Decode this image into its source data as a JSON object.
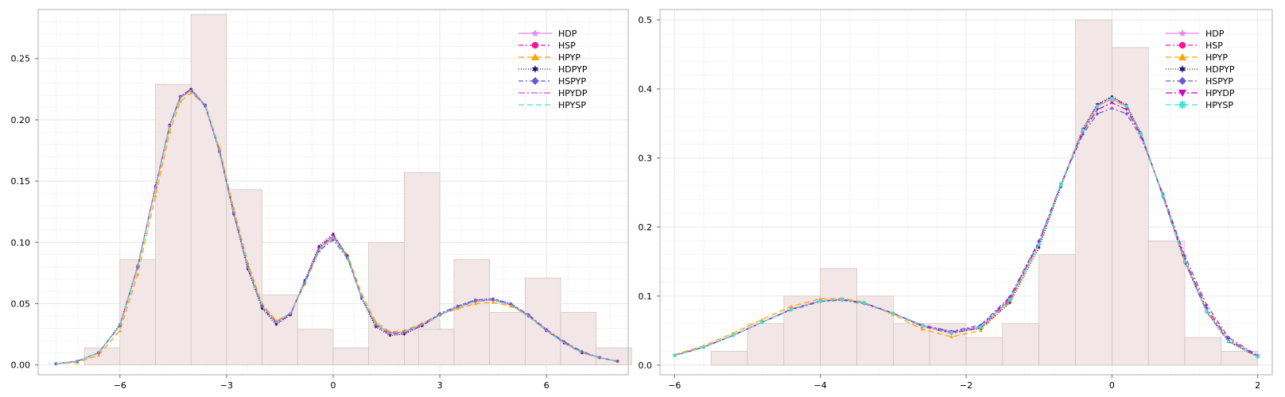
{
  "chart_data": [
    {
      "type": "line",
      "title": "",
      "xlabel": "",
      "ylabel": "",
      "xlim": [
        -8.3,
        8.3
      ],
      "ylim": [
        -0.008,
        0.29
      ],
      "xticks": [
        -6,
        -3,
        0,
        3,
        6
      ],
      "xtick_labels": [
        "−6",
        "−3",
        "0",
        "3",
        "6"
      ],
      "yticks": [
        0,
        0.05,
        0.1,
        0.15,
        0.2,
        0.25
      ],
      "ytick_labels": [
        "0.00",
        "0.05",
        "0.10",
        "0.15",
        "0.20",
        "0.25"
      ],
      "grid": true,
      "legend_position": "top-right",
      "histogram": {
        "color": "#f2e6e6",
        "bins": [
          {
            "x0": -7.0,
            "x1": -6.0,
            "height": 0.014
          },
          {
            "x0": -6.0,
            "x1": -5.0,
            "height": 0.086
          },
          {
            "x0": -5.0,
            "x1": -4.0,
            "height": 0.229
          },
          {
            "x0": -4.0,
            "x1": -3.0,
            "height": 0.286
          },
          {
            "x0": -3.0,
            "x1": -2.0,
            "height": 0.143
          },
          {
            "x0": -2.0,
            "x1": -1.0,
            "height": 0.057
          },
          {
            "x0": -1.0,
            "x1": 0.0,
            "height": 0.029
          },
          {
            "x0": 0.0,
            "x1": 1.0,
            "height": 0.014
          },
          {
            "x0": 1.0,
            "x1": 2.0,
            "height": 0.1
          },
          {
            "x0": 2.0,
            "x1": 3.0,
            "height": 0.157
          },
          {
            "x0": 3.0,
            "x1": 4.0,
            "height": 0.029
          }
        ],
        "bins2": [
          {
            "x0": 2.4,
            "x1": 3.4,
            "height": 0.029
          },
          {
            "x0": 3.4,
            "x1": 4.4,
            "height": 0.086
          },
          {
            "x0": 4.4,
            "x1": 5.4,
            "height": 0.043
          },
          {
            "x0": 5.4,
            "x1": 6.4,
            "height": 0.071
          },
          {
            "x0": 6.4,
            "x1": 7.4,
            "height": 0.043
          },
          {
            "x0": 7.4,
            "x1": 8.4,
            "height": 0.014
          }
        ]
      },
      "x": [
        -7.8,
        -7.2,
        -6.6,
        -6.0,
        -5.5,
        -5.0,
        -4.6,
        -4.3,
        -4.0,
        -3.6,
        -3.2,
        -2.8,
        -2.4,
        -2.0,
        -1.6,
        -1.2,
        -0.8,
        -0.4,
        0.0,
        0.4,
        0.8,
        1.2,
        1.6,
        2.0,
        2.5,
        3.0,
        3.5,
        4.0,
        4.5,
        5.0,
        5.5,
        6.0,
        6.5,
        7.0,
        7.5,
        8.0
      ],
      "series": [
        {
          "name": "HDP",
          "color": "#ee82ee",
          "dash": "",
          "marker": "star",
          "values": [
            0.001,
            0.003,
            0.01,
            0.032,
            0.08,
            0.145,
            0.195,
            0.218,
            0.224,
            0.212,
            0.175,
            0.125,
            0.08,
            0.048,
            0.035,
            0.042,
            0.068,
            0.095,
            0.105,
            0.088,
            0.055,
            0.033,
            0.026,
            0.027,
            0.033,
            0.041,
            0.047,
            0.052,
            0.053,
            0.049,
            0.04,
            0.028,
            0.018,
            0.01,
            0.006,
            0.003
          ]
        },
        {
          "name": "HSP",
          "color": "#ff1493",
          "dash": "6,3,2,3",
          "marker": "circle",
          "values": [
            0.001,
            0.003,
            0.01,
            0.032,
            0.08,
            0.145,
            0.195,
            0.219,
            0.225,
            0.212,
            0.175,
            0.124,
            0.079,
            0.047,
            0.034,
            0.041,
            0.068,
            0.096,
            0.106,
            0.089,
            0.055,
            0.032,
            0.025,
            0.026,
            0.032,
            0.041,
            0.047,
            0.052,
            0.053,
            0.049,
            0.04,
            0.028,
            0.018,
            0.01,
            0.006,
            0.003
          ]
        },
        {
          "name": "HPYP",
          "color": "#ffa500",
          "dash": "7,4",
          "marker": "triangle",
          "values": [
            0.001,
            0.002,
            0.008,
            0.028,
            0.074,
            0.138,
            0.19,
            0.215,
            0.222,
            0.212,
            0.177,
            0.128,
            0.083,
            0.05,
            0.036,
            0.042,
            0.066,
            0.093,
            0.104,
            0.09,
            0.058,
            0.035,
            0.027,
            0.028,
            0.034,
            0.041,
            0.046,
            0.05,
            0.051,
            0.048,
            0.04,
            0.029,
            0.019,
            0.011,
            0.006,
            0.003
          ]
        },
        {
          "name": "HDPYP",
          "color": "#191970",
          "dash": "1,2",
          "marker": "star6",
          "values": [
            0.001,
            0.003,
            0.01,
            0.033,
            0.081,
            0.146,
            0.196,
            0.219,
            0.225,
            0.212,
            0.174,
            0.123,
            0.078,
            0.046,
            0.033,
            0.041,
            0.069,
            0.097,
            0.107,
            0.089,
            0.054,
            0.031,
            0.024,
            0.025,
            0.032,
            0.041,
            0.048,
            0.053,
            0.054,
            0.05,
            0.04,
            0.028,
            0.018,
            0.01,
            0.006,
            0.003
          ]
        },
        {
          "name": "HSPYP",
          "color": "#6a5acd",
          "dash": "6,3,2,3",
          "marker": "diamond",
          "values": [
            0.001,
            0.003,
            0.01,
            0.032,
            0.08,
            0.145,
            0.195,
            0.219,
            0.224,
            0.211,
            0.174,
            0.124,
            0.08,
            0.048,
            0.035,
            0.042,
            0.067,
            0.093,
            0.102,
            0.087,
            0.055,
            0.033,
            0.026,
            0.027,
            0.033,
            0.042,
            0.048,
            0.053,
            0.054,
            0.05,
            0.041,
            0.029,
            0.019,
            0.011,
            0.006,
            0.003
          ]
        },
        {
          "name": "HPYDP",
          "color": "#dd44dd",
          "dash": "8,3,2,3",
          "marker": "none",
          "values": [
            0.001,
            0.003,
            0.01,
            0.032,
            0.08,
            0.145,
            0.195,
            0.218,
            0.224,
            0.212,
            0.175,
            0.125,
            0.08,
            0.048,
            0.035,
            0.042,
            0.068,
            0.095,
            0.105,
            0.088,
            0.055,
            0.033,
            0.026,
            0.027,
            0.033,
            0.041,
            0.047,
            0.052,
            0.053,
            0.049,
            0.04,
            0.028,
            0.018,
            0.01,
            0.006,
            0.003
          ]
        },
        {
          "name": "HPYSP",
          "color": "#40e0d0",
          "dash": "7,4",
          "marker": "none",
          "values": [
            0.001,
            0.003,
            0.01,
            0.032,
            0.08,
            0.145,
            0.195,
            0.218,
            0.224,
            0.212,
            0.175,
            0.125,
            0.08,
            0.048,
            0.035,
            0.042,
            0.067,
            0.094,
            0.104,
            0.088,
            0.055,
            0.033,
            0.026,
            0.027,
            0.033,
            0.041,
            0.047,
            0.052,
            0.053,
            0.049,
            0.04,
            0.028,
            0.018,
            0.01,
            0.006,
            0.003
          ]
        }
      ]
    },
    {
      "type": "line",
      "title": "",
      "xlabel": "",
      "ylabel": "",
      "xlim": [
        -6.2,
        2.2
      ],
      "ylim": [
        -0.014,
        0.515
      ],
      "xticks": [
        -6,
        -4,
        -2,
        0,
        2
      ],
      "xtick_labels": [
        "−6",
        "−4",
        "−2",
        "0",
        "2"
      ],
      "yticks": [
        0,
        0.1,
        0.2,
        0.3,
        0.4,
        0.5
      ],
      "ytick_labels": [
        "0.0",
        "0.1",
        "0.2",
        "0.3",
        "0.4",
        "0.5"
      ],
      "grid": true,
      "legend_position": "top-right",
      "histogram": {
        "color": "#f2e6e6",
        "bins": [
          {
            "x0": -5.5,
            "x1": -5.0,
            "height": 0.02
          },
          {
            "x0": -5.0,
            "x1": -4.5,
            "height": 0.06
          },
          {
            "x0": -4.5,
            "x1": -4.0,
            "height": 0.1
          },
          {
            "x0": -4.0,
            "x1": -3.5,
            "height": 0.14
          },
          {
            "x0": -3.5,
            "x1": -3.0,
            "height": 0.1
          },
          {
            "x0": -3.0,
            "x1": -2.5,
            "height": 0.06
          },
          {
            "x0": -2.5,
            "x1": -2.0,
            "height": 0.06
          },
          {
            "x0": -2.0,
            "x1": -1.5,
            "height": 0.04
          },
          {
            "x0": -1.5,
            "x1": -1.0,
            "height": 0.06
          },
          {
            "x0": -1.0,
            "x1": -0.5,
            "height": 0.16
          },
          {
            "x0": -0.5,
            "x1": 0.0,
            "height": 0.5
          },
          {
            "x0": 0.0,
            "x1": 0.5,
            "height": 0.46
          },
          {
            "x0": 0.5,
            "x1": 1.0,
            "height": 0.18
          },
          {
            "x0": 1.0,
            "x1": 1.5,
            "height": 0.04
          },
          {
            "x0": 1.5,
            "x1": 2.0,
            "height": 0.02
          }
        ]
      },
      "x": [
        -6.0,
        -5.6,
        -5.2,
        -4.8,
        -4.4,
        -4.0,
        -3.7,
        -3.4,
        -3.0,
        -2.6,
        -2.2,
        -1.8,
        -1.4,
        -1.0,
        -0.7,
        -0.4,
        -0.2,
        0.0,
        0.2,
        0.4,
        0.7,
        1.0,
        1.3,
        1.6,
        2.0
      ],
      "series": [
        {
          "name": "HDP",
          "color": "#ee82ee",
          "dash": "",
          "marker": "star",
          "values": [
            0.014,
            0.026,
            0.043,
            0.062,
            0.081,
            0.093,
            0.095,
            0.09,
            0.075,
            0.057,
            0.047,
            0.055,
            0.095,
            0.175,
            0.26,
            0.34,
            0.375,
            0.386,
            0.375,
            0.335,
            0.245,
            0.15,
            0.078,
            0.035,
            0.012
          ]
        },
        {
          "name": "HSP",
          "color": "#ff1493",
          "dash": "6,3,2,3",
          "marker": "circle",
          "values": [
            0.014,
            0.026,
            0.043,
            0.062,
            0.081,
            0.093,
            0.095,
            0.09,
            0.075,
            0.056,
            0.046,
            0.054,
            0.094,
            0.175,
            0.261,
            0.342,
            0.377,
            0.388,
            0.376,
            0.335,
            0.244,
            0.149,
            0.077,
            0.034,
            0.012
          ]
        },
        {
          "name": "HPYP",
          "color": "#ffa500",
          "dash": "7,4",
          "marker": "triangle",
          "values": [
            0.015,
            0.028,
            0.046,
            0.066,
            0.085,
            0.096,
            0.097,
            0.091,
            0.073,
            0.052,
            0.041,
            0.05,
            0.092,
            0.175,
            0.262,
            0.342,
            0.376,
            0.385,
            0.374,
            0.334,
            0.245,
            0.151,
            0.079,
            0.035,
            0.012
          ]
        },
        {
          "name": "HDPYP",
          "color": "#191970",
          "dash": "1,2",
          "marker": "star6",
          "values": [
            0.014,
            0.026,
            0.043,
            0.062,
            0.081,
            0.093,
            0.095,
            0.09,
            0.075,
            0.057,
            0.047,
            0.053,
            0.09,
            0.17,
            0.258,
            0.341,
            0.378,
            0.389,
            0.377,
            0.336,
            0.244,
            0.149,
            0.077,
            0.034,
            0.012
          ]
        },
        {
          "name": "HSPYP",
          "color": "#6a5acd",
          "dash": "6,3,2,3",
          "marker": "diamond",
          "values": [
            0.014,
            0.026,
            0.043,
            0.062,
            0.08,
            0.092,
            0.094,
            0.089,
            0.075,
            0.058,
            0.049,
            0.058,
            0.099,
            0.18,
            0.262,
            0.334,
            0.364,
            0.372,
            0.364,
            0.33,
            0.248,
            0.158,
            0.087,
            0.04,
            0.014
          ]
        },
        {
          "name": "HPYDP",
          "color": "#cc00cc",
          "dash": "8,3,2,3",
          "marker": "invtriangle",
          "values": [
            0.014,
            0.026,
            0.043,
            0.062,
            0.081,
            0.093,
            0.095,
            0.09,
            0.075,
            0.057,
            0.048,
            0.056,
            0.097,
            0.178,
            0.262,
            0.338,
            0.37,
            0.38,
            0.37,
            0.333,
            0.246,
            0.153,
            0.082,
            0.037,
            0.013
          ]
        },
        {
          "name": "HPYSP",
          "color": "#40e0d0",
          "dash": "7,4",
          "marker": "asterisk",
          "values": [
            0.014,
            0.026,
            0.043,
            0.062,
            0.081,
            0.093,
            0.095,
            0.09,
            0.075,
            0.057,
            0.047,
            0.055,
            0.095,
            0.175,
            0.261,
            0.34,
            0.375,
            0.386,
            0.375,
            0.335,
            0.245,
            0.15,
            0.078,
            0.035,
            0.012
          ]
        }
      ]
    }
  ]
}
